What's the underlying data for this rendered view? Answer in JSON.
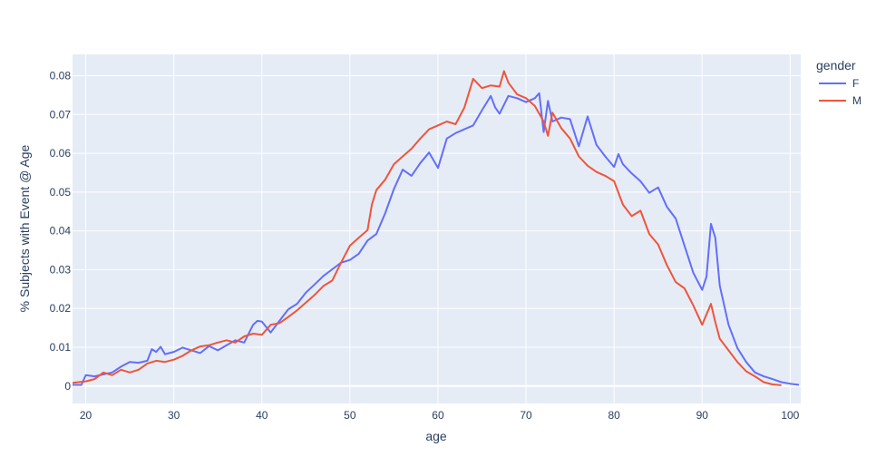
{
  "chart_data": {
    "type": "line",
    "title": "",
    "xlabel": "age",
    "ylabel": "% Subjects with Event @ Age",
    "xlim": [
      18.5,
      101.2
    ],
    "ylim": [
      -0.0045,
      0.0855
    ],
    "x_ticks": [
      20,
      30,
      40,
      50,
      60,
      70,
      80,
      90,
      100
    ],
    "y_ticks": [
      0,
      0.01,
      0.02,
      0.03,
      0.04,
      0.05,
      0.06,
      0.07,
      0.08
    ],
    "y_tick_labels": [
      "0",
      "0.01",
      "0.02",
      "0.03",
      "0.04",
      "0.05",
      "0.06",
      "0.07",
      "0.08"
    ],
    "grid": true,
    "legend": {
      "title": "gender",
      "position": "top-right"
    },
    "colors": {
      "plot_bg": "#e5ecf6",
      "grid": "#ffffff",
      "text": "#2a3f5f"
    },
    "series": [
      {
        "name": "F",
        "color": "#636efa",
        "x": [
          18.5,
          19.5,
          20,
          21,
          22,
          23,
          24,
          25,
          26,
          27,
          27.5,
          28,
          28.5,
          29,
          29.5,
          30,
          31,
          32,
          33,
          34,
          35,
          36,
          37,
          38,
          39,
          39.5,
          40,
          41,
          42,
          43,
          44,
          45,
          46,
          47,
          48,
          49,
          50,
          51,
          52,
          53,
          54,
          55,
          56,
          57,
          58,
          59,
          60,
          61,
          62,
          63,
          64,
          65,
          66,
          66.5,
          67,
          68,
          69,
          70,
          71,
          71.5,
          72,
          72.5,
          73,
          74,
          75,
          76,
          77,
          78,
          79,
          80,
          80.5,
          81,
          82,
          83,
          84,
          85,
          86,
          87,
          88,
          89,
          90,
          90.5,
          91,
          91.5,
          92,
          93,
          94,
          95,
          96,
          97,
          98,
          99,
          100,
          101
        ],
        "values": [
          0.0003,
          0.0003,
          0.0028,
          0.0025,
          0.003,
          0.0035,
          0.005,
          0.0062,
          0.006,
          0.0065,
          0.0095,
          0.0088,
          0.0101,
          0.0082,
          0.0085,
          0.0088,
          0.0099,
          0.0092,
          0.0085,
          0.0103,
          0.0092,
          0.0105,
          0.0118,
          0.0112,
          0.0158,
          0.0168,
          0.0166,
          0.0138,
          0.0168,
          0.0198,
          0.0212,
          0.0241,
          0.0262,
          0.0284,
          0.0301,
          0.0318,
          0.0325,
          0.0341,
          0.0375,
          0.0392,
          0.0445,
          0.0508,
          0.0558,
          0.0542,
          0.0575,
          0.0602,
          0.0562,
          0.0638,
          0.0652,
          0.0662,
          0.0672,
          0.0711,
          0.0748,
          0.0718,
          0.0702,
          0.0748,
          0.0742,
          0.0732,
          0.0742,
          0.0755,
          0.0655,
          0.0735,
          0.0682,
          0.0692,
          0.0688,
          0.0618,
          0.0695,
          0.0622,
          0.0592,
          0.0565,
          0.0598,
          0.0572,
          0.0548,
          0.0528,
          0.0498,
          0.0512,
          0.0462,
          0.0432,
          0.0362,
          0.0292,
          0.0248,
          0.0282,
          0.0418,
          0.0382,
          0.0259,
          0.0158,
          0.0098,
          0.0062,
          0.0035,
          0.0025,
          0.0018,
          0.001,
          0.0006,
          0.0003
        ]
      },
      {
        "name": "M",
        "color": "#ef553b",
        "x": [
          18.5,
          20,
          21,
          22,
          23,
          24,
          25,
          26,
          27,
          28,
          29,
          30,
          31,
          32,
          33,
          34,
          35,
          36,
          37,
          38,
          39,
          40,
          41,
          42,
          43,
          44,
          45,
          46,
          47,
          48,
          49,
          50,
          51,
          52,
          52.5,
          53,
          54,
          55,
          56,
          57,
          58,
          59,
          60,
          61,
          62,
          63,
          64,
          65,
          66,
          67,
          67.5,
          68,
          69,
          70,
          71,
          72,
          72.5,
          73,
          74,
          75,
          76,
          77,
          78,
          79,
          80,
          81,
          82,
          83,
          84,
          85,
          86,
          87,
          88,
          89,
          90,
          91,
          91.5,
          92,
          93,
          94,
          95,
          96,
          97,
          98,
          99
        ],
        "values": [
          0.0008,
          0.0012,
          0.0018,
          0.0035,
          0.0028,
          0.0042,
          0.0035,
          0.0042,
          0.0058,
          0.0065,
          0.0062,
          0.0068,
          0.0078,
          0.0092,
          0.0102,
          0.0105,
          0.0112,
          0.0118,
          0.0112,
          0.0128,
          0.0135,
          0.0132,
          0.0158,
          0.0162,
          0.0178,
          0.0195,
          0.0215,
          0.0235,
          0.0258,
          0.0272,
          0.0318,
          0.0362,
          0.0382,
          0.0402,
          0.0468,
          0.0505,
          0.0532,
          0.0572,
          0.0592,
          0.0612,
          0.0638,
          0.0662,
          0.0672,
          0.0682,
          0.0675,
          0.0718,
          0.0792,
          0.0768,
          0.0775,
          0.0772,
          0.0812,
          0.0782,
          0.0752,
          0.0742,
          0.0722,
          0.0682,
          0.0645,
          0.0705,
          0.0665,
          0.0638,
          0.0592,
          0.0568,
          0.0552,
          0.0542,
          0.0528,
          0.0468,
          0.0438,
          0.0452,
          0.0392,
          0.0365,
          0.0312,
          0.0268,
          0.0252,
          0.0208,
          0.0158,
          0.0212,
          0.0165,
          0.0122,
          0.0092,
          0.0062,
          0.0038,
          0.0025,
          0.001,
          0.0004,
          0.0002
        ]
      }
    ]
  }
}
